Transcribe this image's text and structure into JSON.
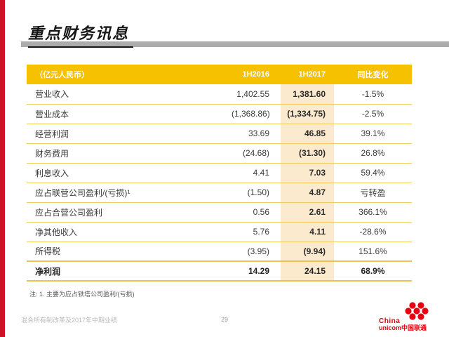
{
  "page": {
    "title": "重点财务讯息",
    "footnote": "注: 1. 主要为应占铁塔公司盈利/(亏损)",
    "footer": {
      "left_text": "混合所有制改革及2017年中期业绩",
      "page_number": "29"
    },
    "logo": {
      "line1": "China",
      "line2": "unicom中国联通"
    }
  },
  "table": {
    "headers": [
      "（亿元人民币）",
      "1H2016",
      "1H2017",
      "同比变化"
    ],
    "rows": [
      {
        "label": "营业收入",
        "h1_2016": "1,402.55",
        "h1_2017": "1,381.60",
        "change": "-1.5%",
        "emphasis": false
      },
      {
        "label": "营业成本",
        "h1_2016": "(1,368.86)",
        "h1_2017": "(1,334.75)",
        "change": "-2.5%",
        "emphasis": false
      },
      {
        "label": "经营利润",
        "h1_2016": "33.69",
        "h1_2017": "46.85",
        "change": "39.1%",
        "emphasis": false
      },
      {
        "label": "财务费用",
        "h1_2016": "(24.68)",
        "h1_2017": "(31.30)",
        "change": "26.8%",
        "emphasis": false
      },
      {
        "label": "利息收入",
        "h1_2016": "4.41",
        "h1_2017": "7.03",
        "change": "59.4%",
        "emphasis": false
      },
      {
        "label": "应占联营公司盈利/(亏损)¹",
        "h1_2016": "(1.50)",
        "h1_2017": "4.87",
        "change": "亏转盈",
        "emphasis": false
      },
      {
        "label": "应占合营公司盈利",
        "h1_2016": "0.56",
        "h1_2017": "2.61",
        "change": "366.1%",
        "emphasis": false
      },
      {
        "label": "净其他收入",
        "h1_2016": "5.76",
        "h1_2017": "4.11",
        "change": "-28.6%",
        "emphasis": false
      },
      {
        "label": "所得税",
        "h1_2016": "(3.95)",
        "h1_2017": "(9.94)",
        "change": "151.6%",
        "emphasis": false
      },
      {
        "label": "净利润",
        "h1_2016": "14.29",
        "h1_2017": "24.15",
        "change": "68.9%",
        "emphasis": true
      }
    ]
  },
  "colors": {
    "accent_red_bar": "#ce1126",
    "header_gold": "#f6c101",
    "highlight_peach": "#fceacf",
    "row_border_gold": "#f0cb62",
    "gray_bar": "#acacac",
    "logo_red": "#e60012"
  }
}
